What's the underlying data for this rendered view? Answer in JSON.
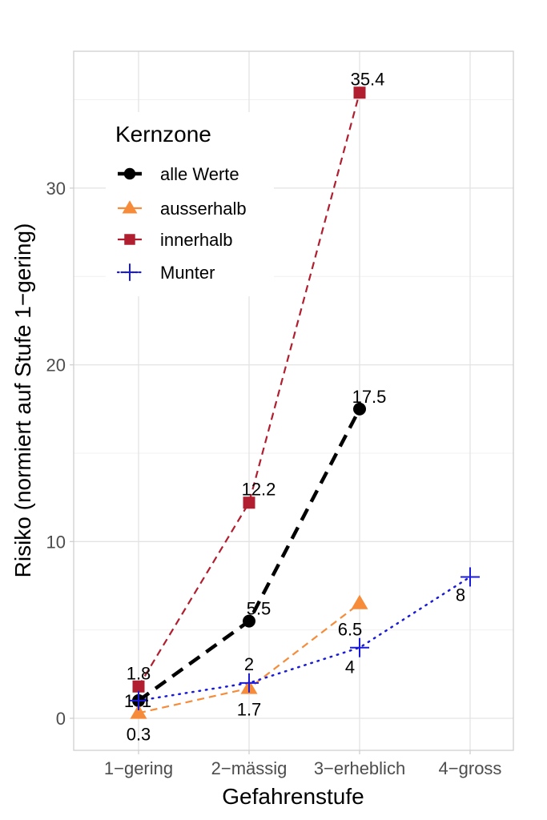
{
  "chart_data": {
    "type": "line",
    "title": "",
    "xlabel": "Gefahrenstufe",
    "ylabel": "Risiko (normiert auf Stufe 1−gering)",
    "categories": [
      "1−gering",
      "2−mässig",
      "3−erheblich",
      "4−gross"
    ],
    "ylim": [
      -1.8,
      37.0
    ],
    "yticks": [
      0,
      10,
      20,
      30
    ],
    "ytick_labels": [
      "0",
      "10",
      "20",
      "30"
    ],
    "grid": true,
    "legend": {
      "title": "Kernzone",
      "position": "top-left (inside)",
      "entries": [
        "alle Werte",
        "ausserhalb",
        "innerhalb",
        "Munter"
      ]
    },
    "series": [
      {
        "name": "alle Werte",
        "color": "#000000",
        "marker": "circle",
        "line_style": "long-dashed",
        "values": [
          1,
          5.5,
          17.5,
          null
        ],
        "labels": [
          "1",
          "5.5",
          "17.5",
          null
        ]
      },
      {
        "name": "ausserhalb",
        "color": "#F68C3A",
        "marker": "triangle",
        "line_style": "dashed",
        "values": [
          0.3,
          1.7,
          6.5,
          null
        ],
        "labels": [
          "0.3",
          "1.7",
          "6.5",
          null
        ]
      },
      {
        "name": "innerhalb",
        "color": "#B01E2F",
        "marker": "square",
        "line_style": "dashed",
        "values": [
          1.8,
          12.2,
          35.4,
          null
        ],
        "labels": [
          "1.8",
          "12.2",
          "35.4",
          null
        ]
      },
      {
        "name": "Munter",
        "color": "#1A1ADB",
        "marker": "plus",
        "line_style": "dotted",
        "values": [
          1,
          2,
          4,
          8
        ],
        "labels": [
          "1",
          "2",
          "4",
          "8"
        ]
      }
    ]
  }
}
